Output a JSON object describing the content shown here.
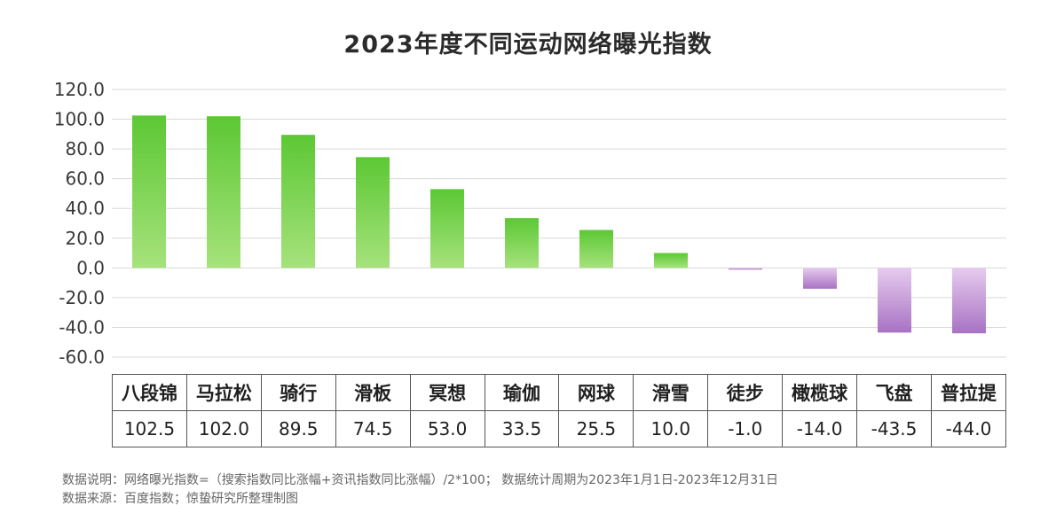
{
  "chart_data": {
    "type": "bar",
    "title": "2023年度不同运动网络曝光指数",
    "categories": [
      "八段锦",
      "马拉松",
      "骑行",
      "滑板",
      "冥想",
      "瑜伽",
      "网球",
      "滑雪",
      "徒步",
      "橄榄球",
      "飞盘",
      "普拉提"
    ],
    "values": [
      102.5,
      102.0,
      89.5,
      74.5,
      53.0,
      33.5,
      25.5,
      10.0,
      -1.0,
      -14.0,
      -43.5,
      -44.0
    ],
    "value_labels": [
      "102.5",
      "102.0",
      "89.5",
      "74.5",
      "53.0",
      "33.5",
      "25.5",
      "10.0",
      "-1.0",
      "-14.0",
      "-43.5",
      "-44.0"
    ],
    "ylim": [
      -60,
      120
    ],
    "yticks": [
      120,
      100,
      80,
      60,
      40,
      20,
      0,
      -20,
      -40,
      -60
    ],
    "ytick_labels": [
      "120.0",
      "100.0",
      "80.0",
      "60.0",
      "40.0",
      "20.0",
      "0.0",
      "-20.0",
      "-40.0",
      "-60.0"
    ],
    "grid": true,
    "xlabel": "",
    "ylabel": "",
    "colors": {
      "positive_top": "#5cc834",
      "positive_bottom": "#a6e27c",
      "negative_top": "#e6cbee",
      "negative_bottom": "#a872c4"
    }
  },
  "footnote": {
    "line1": "数据说明：网络曝光指数=（搜索指数同比涨幅+资讯指数同比涨幅）/2*100；  数据统计周期为2023年1月1日-2023年12月31日",
    "line2": "数据来源：百度指数；惊蛰研究所整理制图"
  }
}
